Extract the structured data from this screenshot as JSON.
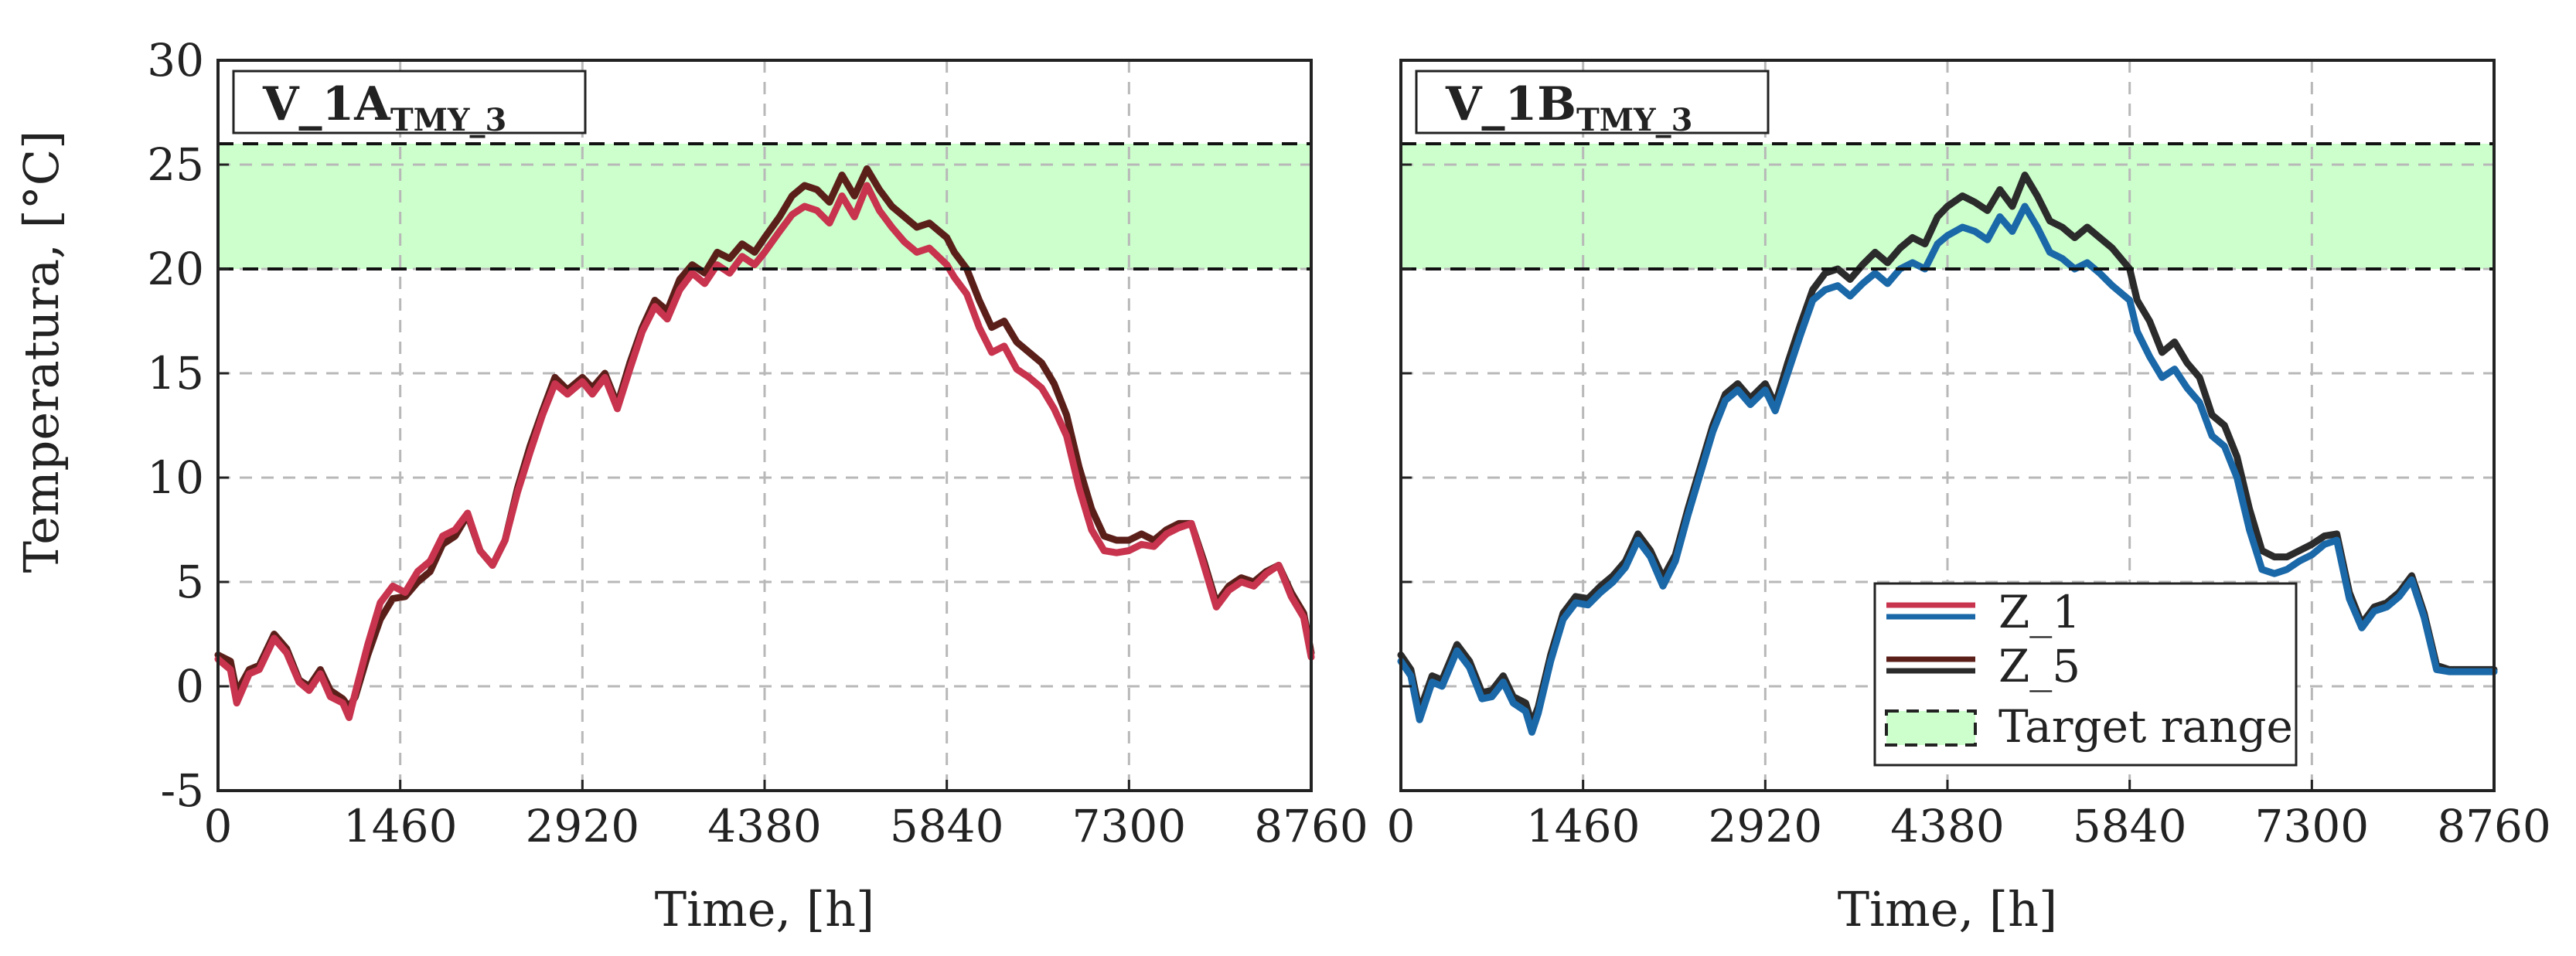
{
  "colors": {
    "Z_1_left": "#c8334e",
    "Z_5_left": "#5b1f1a",
    "Z_1_right": "#1a68a8",
    "Z_5_right": "#2b2b2b",
    "target_fill": "#ccffcc",
    "grid": "#b8b8b8"
  },
  "chart_data": [
    {
      "type": "line",
      "title": "V_1A",
      "title_subscript": "TMY_3",
      "xlabel": "Time, [h]",
      "ylabel": "Temperatura, [°C]",
      "xlim": [
        0,
        8760
      ],
      "ylim": [
        -5,
        30
      ],
      "xticks": [
        "0",
        "1460",
        "2920",
        "4380",
        "5840",
        "7300",
        "8760"
      ],
      "yticks": [
        "-5",
        "0",
        "5",
        "10",
        "15",
        "20",
        "25",
        "30"
      ],
      "grid": true,
      "target_range": [
        20,
        26
      ],
      "series": [
        {
          "name": "Z_5",
          "color": "#5b1f1a",
          "x": [
            0,
            100,
            150,
            250,
            330,
            450,
            550,
            650,
            730,
            820,
            900,
            1000,
            1050,
            1100,
            1200,
            1300,
            1400,
            1500,
            1600,
            1700,
            1800,
            1900,
            2000,
            2100,
            2200,
            2300,
            2400,
            2500,
            2600,
            2700,
            2800,
            2920,
            3000,
            3100,
            3200,
            3300,
            3400,
            3500,
            3600,
            3700,
            3800,
            3900,
            4000,
            4100,
            4200,
            4300,
            4380,
            4500,
            4600,
            4700,
            4800,
            4900,
            5000,
            5100,
            5200,
            5300,
            5400,
            5500,
            5600,
            5700,
            5840,
            5900,
            6000,
            6100,
            6200,
            6300,
            6400,
            6500,
            6600,
            6700,
            6800,
            6900,
            7000,
            7100,
            7200,
            7300,
            7400,
            7500,
            7600,
            7700,
            7800,
            7900,
            8000,
            8100,
            8200,
            8300,
            8400,
            8500,
            8600,
            8700,
            8760
          ],
          "y": [
            1.5,
            1.2,
            -0.3,
            0.8,
            1.0,
            2.5,
            1.8,
            0.3,
            0.0,
            0.8,
            -0.2,
            -0.6,
            -1.0,
            -0.5,
            1.5,
            3.2,
            4.2,
            4.3,
            5.0,
            5.5,
            6.8,
            7.2,
            8.2,
            6.5,
            5.8,
            7.0,
            9.5,
            11.5,
            13.2,
            14.8,
            14.2,
            14.8,
            14.3,
            15.0,
            13.5,
            15.5,
            17.2,
            18.5,
            18.0,
            19.5,
            20.2,
            19.8,
            20.8,
            20.5,
            21.2,
            20.8,
            21.5,
            22.5,
            23.5,
            24.0,
            23.8,
            23.2,
            24.5,
            23.5,
            24.8,
            23.8,
            23.0,
            22.5,
            22.0,
            22.2,
            21.5,
            20.8,
            20.0,
            18.5,
            17.2,
            17.5,
            16.5,
            16.0,
            15.5,
            14.5,
            13.0,
            10.5,
            8.5,
            7.2,
            7.0,
            7.0,
            7.3,
            7.0,
            7.5,
            7.8,
            7.8,
            6.0,
            4.0,
            4.8,
            5.2,
            5.0,
            5.5,
            5.8,
            4.5,
            3.5,
            1.6
          ]
        },
        {
          "name": "Z_1",
          "color": "#c8334e",
          "x": [
            0,
            100,
            150,
            250,
            330,
            450,
            550,
            650,
            730,
            820,
            900,
            1000,
            1050,
            1100,
            1200,
            1300,
            1400,
            1500,
            1600,
            1700,
            1800,
            1900,
            2000,
            2100,
            2200,
            2300,
            2400,
            2500,
            2600,
            2700,
            2800,
            2920,
            3000,
            3100,
            3200,
            3300,
            3400,
            3500,
            3600,
            3700,
            3800,
            3900,
            4000,
            4100,
            4200,
            4300,
            4380,
            4500,
            4600,
            4700,
            4800,
            4900,
            5000,
            5100,
            5200,
            5300,
            5400,
            5500,
            5600,
            5700,
            5840,
            5900,
            6000,
            6100,
            6200,
            6300,
            6400,
            6500,
            6600,
            6700,
            6800,
            6900,
            7000,
            7100,
            7200,
            7300,
            7400,
            7500,
            7600,
            7700,
            7800,
            7900,
            8000,
            8100,
            8200,
            8300,
            8400,
            8500,
            8600,
            8700,
            8760
          ],
          "y": [
            1.3,
            0.8,
            -0.8,
            0.6,
            0.8,
            2.3,
            1.6,
            0.2,
            -0.2,
            0.6,
            -0.5,
            -0.8,
            -1.5,
            -0.3,
            2.0,
            4.0,
            4.8,
            4.5,
            5.5,
            6.0,
            7.2,
            7.5,
            8.3,
            6.5,
            5.8,
            7.0,
            9.3,
            11.2,
            13.0,
            14.5,
            14.0,
            14.6,
            14.0,
            14.8,
            13.3,
            15.2,
            17.0,
            18.2,
            17.6,
            19.0,
            19.8,
            19.3,
            20.2,
            19.8,
            20.6,
            20.2,
            20.8,
            21.8,
            22.6,
            23.0,
            22.8,
            22.2,
            23.5,
            22.5,
            24.0,
            22.8,
            22.0,
            21.3,
            20.8,
            21.0,
            20.2,
            19.6,
            18.8,
            17.2,
            16.0,
            16.3,
            15.2,
            14.8,
            14.3,
            13.3,
            12.0,
            9.5,
            7.5,
            6.5,
            6.4,
            6.5,
            6.8,
            6.7,
            7.3,
            7.6,
            7.8,
            5.8,
            3.8,
            4.6,
            5.0,
            4.8,
            5.4,
            5.8,
            4.3,
            3.3,
            1.4
          ]
        }
      ]
    },
    {
      "type": "line",
      "title": "V_1B",
      "title_subscript": "TMY_3",
      "xlabel": "Time, [h]",
      "ylabel": "",
      "xlim": [
        0,
        8760
      ],
      "ylim": [
        -5,
        30
      ],
      "xticks": [
        "0",
        "1460",
        "2920",
        "4380",
        "5840",
        "7300",
        "8760"
      ],
      "grid": true,
      "target_range": [
        20,
        26
      ],
      "legend_position": "bottom-right",
      "legend": [
        "Z_1",
        "Z_5",
        "Target range"
      ],
      "series": [
        {
          "name": "Z_5",
          "color": "#2b2b2b",
          "x": [
            0,
            80,
            150,
            250,
            330,
            450,
            550,
            650,
            730,
            820,
            900,
            1000,
            1050,
            1100,
            1200,
            1300,
            1400,
            1500,
            1600,
            1700,
            1800,
            1900,
            2000,
            2100,
            2200,
            2300,
            2400,
            2500,
            2600,
            2700,
            2800,
            2920,
            3000,
            3100,
            3200,
            3300,
            3400,
            3500,
            3600,
            3700,
            3800,
            3900,
            4000,
            4100,
            4200,
            4300,
            4380,
            4500,
            4600,
            4700,
            4800,
            4900,
            5000,
            5100,
            5200,
            5300,
            5400,
            5500,
            5600,
            5700,
            5840,
            5900,
            6000,
            6100,
            6200,
            6300,
            6400,
            6500,
            6600,
            6700,
            6800,
            6900,
            7000,
            7100,
            7200,
            7300,
            7400,
            7500,
            7600,
            7700,
            7800,
            7900,
            8000,
            8100,
            8200,
            8300,
            8400,
            8500,
            8600,
            8700,
            8760
          ],
          "y": [
            1.5,
            0.8,
            -1.2,
            0.5,
            0.3,
            2.0,
            1.2,
            -0.3,
            -0.2,
            0.5,
            -0.5,
            -0.8,
            -1.8,
            -1.0,
            1.5,
            3.5,
            4.3,
            4.2,
            4.8,
            5.3,
            6.0,
            7.3,
            6.5,
            5.2,
            6.3,
            8.5,
            10.5,
            12.5,
            14.0,
            14.5,
            13.8,
            14.5,
            13.5,
            15.5,
            17.3,
            19.0,
            19.8,
            20.0,
            19.5,
            20.2,
            20.8,
            20.3,
            21.0,
            21.5,
            21.2,
            22.5,
            23.0,
            23.5,
            23.2,
            22.8,
            23.8,
            23.0,
            24.5,
            23.5,
            22.3,
            22.0,
            21.5,
            22.0,
            21.5,
            21.0,
            20.0,
            18.5,
            17.5,
            16.0,
            16.5,
            15.5,
            14.8,
            13.0,
            12.5,
            11.0,
            8.5,
            6.5,
            6.2,
            6.2,
            6.5,
            6.8,
            7.2,
            7.3,
            4.5,
            3.0,
            3.8,
            4.0,
            4.5,
            5.3,
            3.5,
            1.0,
            0.8,
            0.8,
            0.8,
            0.8,
            0.8
          ]
        },
        {
          "name": "Z_1",
          "color": "#1a68a8",
          "x": [
            0,
            80,
            150,
            250,
            330,
            450,
            550,
            650,
            730,
            820,
            900,
            1000,
            1050,
            1100,
            1200,
            1300,
            1400,
            1500,
            1600,
            1700,
            1800,
            1900,
            2000,
            2100,
            2200,
            2300,
            2400,
            2500,
            2600,
            2700,
            2800,
            2920,
            3000,
            3100,
            3200,
            3300,
            3400,
            3500,
            3600,
            3700,
            3800,
            3900,
            4000,
            4100,
            4200,
            4300,
            4380,
            4500,
            4600,
            4700,
            4800,
            4900,
            5000,
            5100,
            5200,
            5300,
            5400,
            5500,
            5600,
            5700,
            5840,
            5900,
            6000,
            6100,
            6200,
            6300,
            6400,
            6500,
            6600,
            6700,
            6800,
            6900,
            7000,
            7100,
            7200,
            7300,
            7400,
            7500,
            7600,
            7700,
            7800,
            7900,
            8000,
            8100,
            8200,
            8300,
            8400,
            8500,
            8600,
            8700,
            8760
          ],
          "y": [
            1.2,
            0.5,
            -1.6,
            0.2,
            0.0,
            1.7,
            0.9,
            -0.6,
            -0.5,
            0.2,
            -0.8,
            -1.2,
            -2.2,
            -1.3,
            1.2,
            3.2,
            4.0,
            3.9,
            4.5,
            5.0,
            5.7,
            7.0,
            6.2,
            4.8,
            6.0,
            8.2,
            10.2,
            12.2,
            13.7,
            14.2,
            13.5,
            14.2,
            13.2,
            15.0,
            16.8,
            18.5,
            19.0,
            19.2,
            18.7,
            19.3,
            19.8,
            19.3,
            20.0,
            20.3,
            20.0,
            21.2,
            21.6,
            22.0,
            21.8,
            21.4,
            22.5,
            21.8,
            23.0,
            22.0,
            20.8,
            20.5,
            20.0,
            20.3,
            19.8,
            19.2,
            18.5,
            17.0,
            15.8,
            14.8,
            15.2,
            14.3,
            13.6,
            12.0,
            11.5,
            10.0,
            7.5,
            5.6,
            5.4,
            5.6,
            6.0,
            6.3,
            6.8,
            7.0,
            4.2,
            2.8,
            3.6,
            3.8,
            4.3,
            5.1,
            3.3,
            0.8,
            0.7,
            0.7,
            0.7,
            0.7,
            0.7
          ]
        }
      ]
    }
  ]
}
